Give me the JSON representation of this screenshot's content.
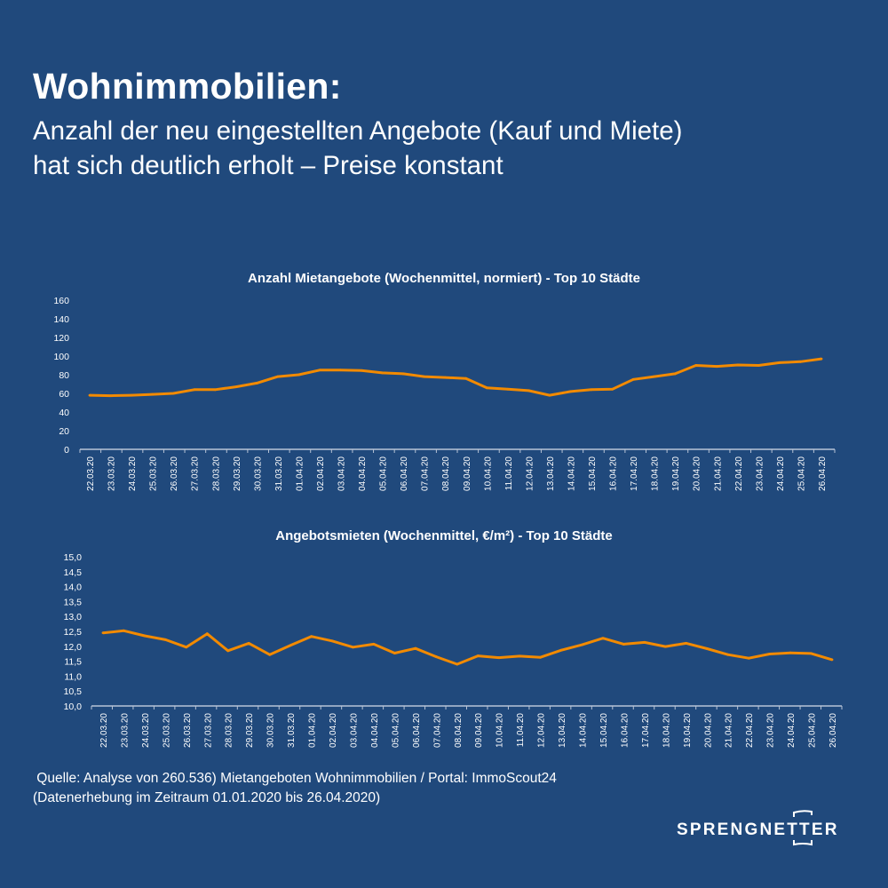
{
  "header": {
    "title": "Wohnimmobilien:",
    "subtitle_line1": "Anzahl der neu eingestellten Angebote (Kauf und Miete)",
    "subtitle_line2": "hat sich deutlich erholt – Preise konstant"
  },
  "footer": {
    "source_line1": " Quelle: Analyse von 260.536) Mietangeboten Wohnimmobilien / Portal: ImmoScout24",
    "source_line2": "(Datenerhebung im Zeitraum 01.01.2020 bis 26.04.2020)",
    "logo": "SPRENGNETTER"
  },
  "colors": {
    "background": "#20497c",
    "line": "#f28a00",
    "text": "#ffffff",
    "axis": "#b8c4d6"
  },
  "chart_data": [
    {
      "type": "line",
      "title": "Anzahl Mietangebote (Wochenmittel, normiert) - Top 10 Städte",
      "xlabel": "",
      "ylabel": "",
      "ylim": [
        0,
        160
      ],
      "yticks": [
        "0",
        "20",
        "40",
        "60",
        "80",
        "100",
        "120",
        "140",
        "160"
      ],
      "grid": false,
      "categories": [
        "22.03.20",
        "23.03.20",
        "24.03.20",
        "25.03.20",
        "26.03.20",
        "27.03.20",
        "28.03.20",
        "29.03.20",
        "30.03.20",
        "31.03.20",
        "01.04.20",
        "02.04.20",
        "03.04.20",
        "04.04.20",
        "05.04.20",
        "06.04.20",
        "07.04.20",
        "08.04.20",
        "09.04.20",
        "10.04.20",
        "11.04.20",
        "12.04.20",
        "13.04.20",
        "14.04.20",
        "15.04.20",
        "16.04.20",
        "17.04.20",
        "18.04.20",
        "19.04.20",
        "20.04.20",
        "21.04.20",
        "22.04.20",
        "23.04.20",
        "24.04.20",
        "25.04.20",
        "26.04.20"
      ],
      "values": [
        58,
        57.5,
        58,
        59,
        60,
        64,
        64,
        67,
        71,
        78,
        80,
        85,
        85,
        84.5,
        82,
        81,
        78,
        77,
        76,
        66,
        64.5,
        63,
        58,
        62,
        64,
        64.5,
        75,
        78,
        81,
        90,
        89,
        90.5,
        90,
        93,
        94,
        97
      ]
    },
    {
      "type": "line",
      "title": "Angebotsmieten (Wochenmittel, €/m²) - Top 10 Städte",
      "xlabel": "",
      "ylabel": "",
      "ylim": [
        10,
        15
      ],
      "yticks": [
        "10,0",
        "10,5",
        "11,0",
        "11,5",
        "12,0",
        "12,5",
        "13,0",
        "13,5",
        "14,0",
        "14,5",
        "15,0"
      ],
      "grid": false,
      "categories": [
        "22.03.20",
        "23.03.20",
        "24.03.20",
        "25.03.20",
        "26.03.20",
        "27.03.20",
        "28.03.20",
        "29.03.20",
        "30.03.20",
        "31.03.20",
        "01.04.20",
        "02.04.20",
        "03.04.20",
        "04.04.20",
        "05.04.20",
        "06.04.20",
        "07.04.20",
        "08.04.20",
        "09.04.20",
        "10.04.20",
        "11.04.20",
        "12.04.20",
        "13.04.20",
        "14.04.20",
        "15.04.20",
        "16.04.20",
        "17.04.20",
        "18.04.20",
        "19.04.20",
        "20.04.20",
        "21.04.20",
        "22.04.20",
        "23.04.20",
        "24.04.20",
        "25.04.20",
        "26.04.20"
      ],
      "values": [
        12.45,
        12.52,
        12.35,
        12.22,
        11.97,
        12.42,
        11.85,
        12.1,
        11.72,
        12.03,
        12.33,
        12.18,
        11.97,
        12.07,
        11.77,
        11.93,
        11.65,
        11.4,
        11.68,
        11.62,
        11.67,
        11.63,
        11.87,
        12.05,
        12.27,
        12.07,
        12.13,
        11.99,
        12.1,
        11.92,
        11.72,
        11.6,
        11.74,
        11.78,
        11.76,
        11.55
      ]
    }
  ]
}
